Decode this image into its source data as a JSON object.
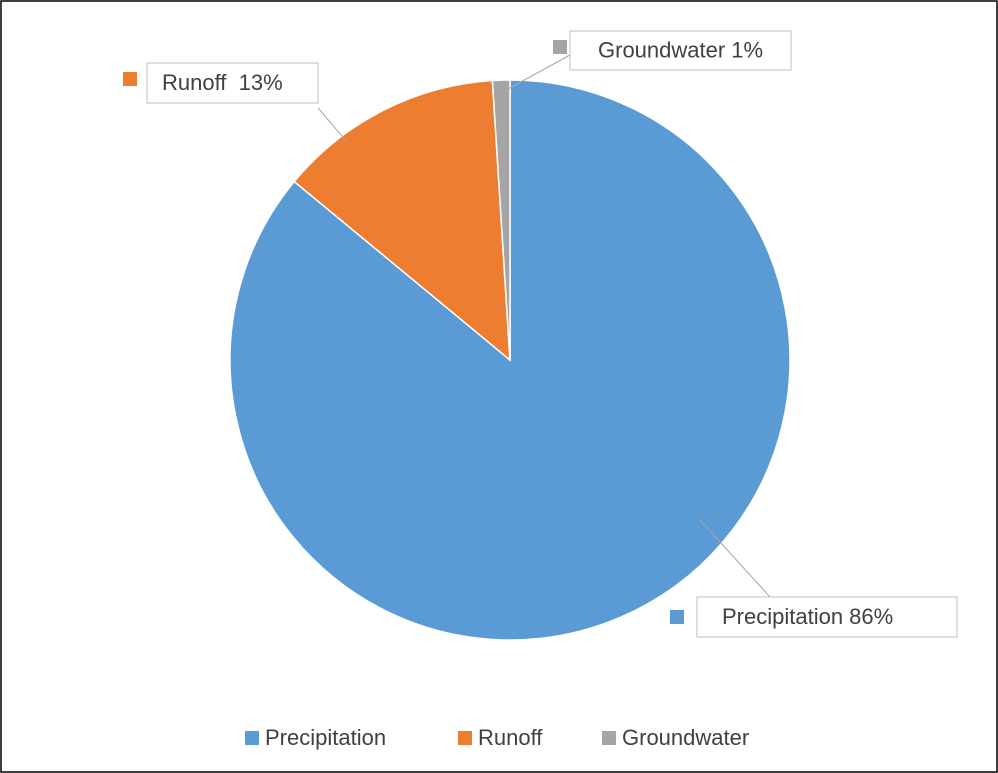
{
  "chart_data": {
    "type": "pie",
    "categories": [
      "Precipitation",
      "Runoff",
      "Groundwater"
    ],
    "values": [
      86,
      13,
      1
    ],
    "value_labels": [
      "Precipitation 86%",
      "Runoff  13%",
      "Groundwater 1%"
    ],
    "colors": [
      "#5b9bd5",
      "#ed7d31",
      "#a5a5a5"
    ],
    "legend": "bottom"
  }
}
